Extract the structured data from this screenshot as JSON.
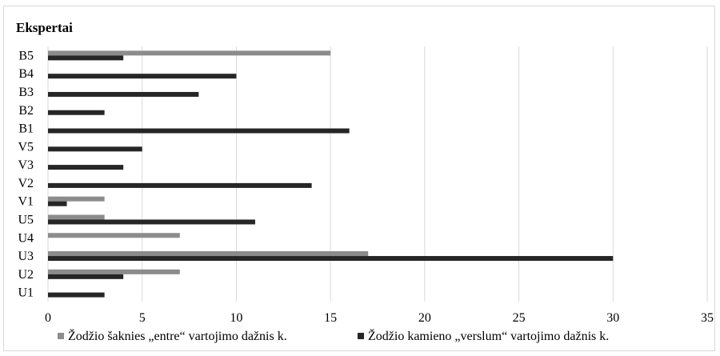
{
  "chart_data": {
    "type": "bar",
    "orientation": "horizontal",
    "title": "Ekspertai",
    "categories": [
      "U1",
      "U2",
      "U3",
      "U4",
      "U5",
      "V1",
      "V2",
      "V3",
      "V5",
      "B1",
      "B2",
      "B3",
      "B4",
      "B5"
    ],
    "series": [
      {
        "name": "Žodžio šaknies „entre“ vartojimo dažnis k.",
        "color": "#8c8c8c",
        "values": [
          0,
          7,
          17,
          7,
          3,
          3,
          0,
          0,
          0,
          0,
          0,
          0,
          0,
          15
        ]
      },
      {
        "name": "Žodžio kamieno „verslum“ vartojimo dažnis k.",
        "color": "#262626",
        "values": [
          3,
          4,
          30,
          0,
          11,
          1,
          14,
          4,
          5,
          16,
          3,
          8,
          10,
          4
        ]
      }
    ],
    "xlim": [
      0,
      35
    ],
    "xticks": [
      0,
      5,
      10,
      15,
      20,
      25,
      30,
      35
    ],
    "grid": true,
    "legend": "bottom"
  }
}
